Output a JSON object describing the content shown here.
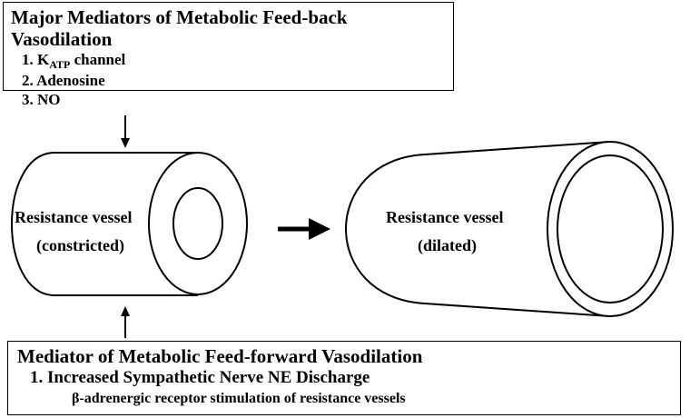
{
  "feedback_box": {
    "title": "Major Mediators of Metabolic Feed-back Vasodilation",
    "items": [
      {
        "num": "1.",
        "main": "K",
        "subscript": "ATP",
        "rest": " channel"
      },
      {
        "num": "2.",
        "main": "Adenosine",
        "subscript": "",
        "rest": ""
      },
      {
        "num": "3.",
        "main": "NO",
        "subscript": "",
        "rest": ""
      }
    ]
  },
  "constricted_vessel": {
    "label": "Resistance vessel",
    "state": "(constricted)"
  },
  "dilated_vessel": {
    "label": "Resistance vessel",
    "state": "(dilated)"
  },
  "feedforward_box": {
    "title": "Mediator of Metabolic Feed-forward Vasodilation",
    "item": "1.  Increased Sympathetic Nerve NE Discharge",
    "sub": "β-adrenergic receptor stimulation of resistance  vessels"
  }
}
